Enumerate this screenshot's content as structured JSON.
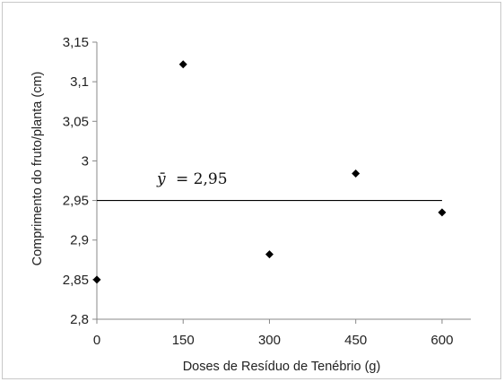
{
  "chart_data": {
    "type": "scatter",
    "xlabel": "Doses de Resíduo de Tenébrio (g)",
    "ylabel": "Comprimento do fruto/planta (cm)",
    "xlim": [
      0,
      650
    ],
    "ylim": [
      2.8,
      3.15
    ],
    "xticks": [
      0,
      150,
      300,
      450,
      600
    ],
    "xtick_labels": [
      "0",
      "150",
      "300",
      "450",
      "600"
    ],
    "yticks": [
      2.8,
      2.85,
      2.9,
      2.95,
      3.0,
      3.05,
      3.1,
      3.15
    ],
    "ytick_labels": [
      "2,8",
      "2,85",
      "2,9",
      "2,95",
      "3",
      "3,05",
      "3,1",
      "3,15"
    ],
    "points": [
      {
        "x": 0,
        "y": 2.85
      },
      {
        "x": 150,
        "y": 3.122
      },
      {
        "x": 300,
        "y": 2.882
      },
      {
        "x": 450,
        "y": 2.984
      },
      {
        "x": 600,
        "y": 2.935
      }
    ],
    "mean_line": {
      "y": 2.95,
      "x_start": 0,
      "x_end": 600,
      "label_symbol": "ȳ",
      "label_text": "= 2,95"
    },
    "marker": "diamond",
    "color": "#000000",
    "grid": false,
    "legend": "none"
  }
}
